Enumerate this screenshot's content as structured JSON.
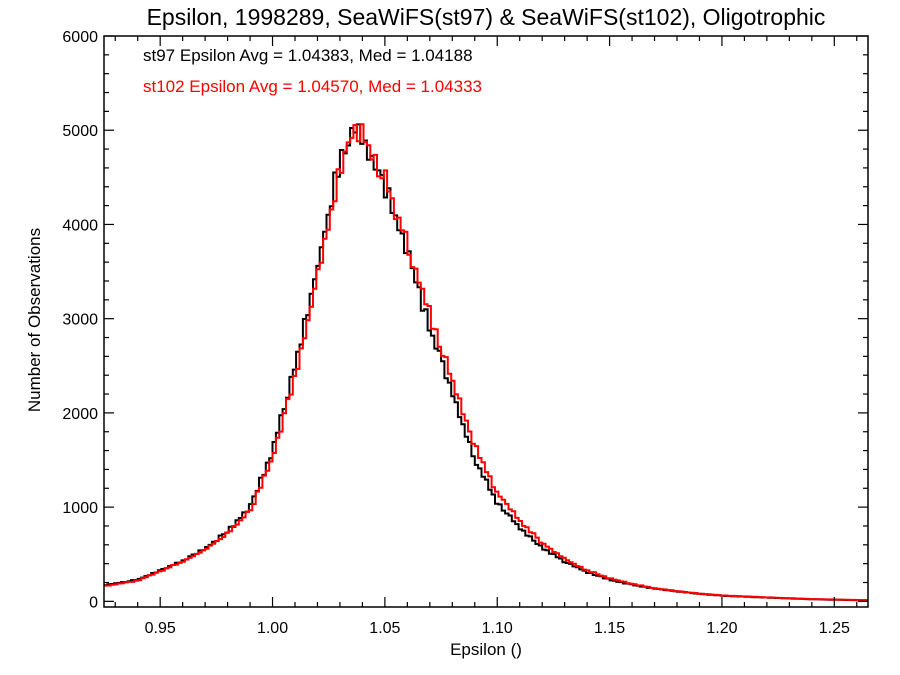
{
  "chart_data": {
    "type": "line",
    "title": "Epsilon, 1998289, SeaWiFS(st97) & SeaWiFS(st102), Oligotrophic",
    "xlabel": "Epsilon ()",
    "ylabel": "Number of Observations",
    "xlim": [
      0.925,
      1.265
    ],
    "ylim": [
      -60,
      6000
    ],
    "xticks": [
      "0.95",
      "1.00",
      "1.05",
      "1.10",
      "1.15",
      "1.20",
      "1.25"
    ],
    "yticks": [
      "0",
      "1000",
      "2000",
      "3000",
      "4000",
      "5000",
      "6000"
    ],
    "grid": false,
    "legend_position": "top-left",
    "annotations": [
      {
        "text": "st97 Epsilon Avg = 1.04383, Med = 1.04188",
        "color": "#000000"
      },
      {
        "text": "st102 Epsilon Avg = 1.04570, Med = 1.04333",
        "color": "#ff0000"
      }
    ],
    "series": [
      {
        "color": "#000000",
        "points": [
          [
            0.925,
            170
          ],
          [
            0.94,
            230
          ],
          [
            0.95,
            330
          ],
          [
            0.96,
            430
          ],
          [
            0.97,
            560
          ],
          [
            0.98,
            740
          ],
          [
            0.99,
            1000
          ],
          [
            1.0,
            1600
          ],
          [
            1.01,
            2500
          ],
          [
            1.02,
            3550
          ],
          [
            1.03,
            4700
          ],
          [
            1.035,
            5000
          ],
          [
            1.04,
            4950
          ],
          [
            1.05,
            4400
          ],
          [
            1.06,
            3700
          ],
          [
            1.07,
            2900
          ],
          [
            1.08,
            2200
          ],
          [
            1.09,
            1500
          ],
          [
            1.1,
            1050
          ],
          [
            1.11,
            780
          ],
          [
            1.12,
            570
          ],
          [
            1.13,
            420
          ],
          [
            1.14,
            310
          ],
          [
            1.15,
            230
          ],
          [
            1.16,
            175
          ],
          [
            1.17,
            135
          ],
          [
            1.18,
            105
          ],
          [
            1.19,
            80
          ],
          [
            1.2,
            60
          ],
          [
            1.22,
            40
          ],
          [
            1.24,
            22
          ],
          [
            1.265,
            10
          ]
        ]
      },
      {
        "color": "#ff0000",
        "points": [
          [
            0.925,
            160
          ],
          [
            0.94,
            220
          ],
          [
            0.95,
            320
          ],
          [
            0.96,
            420
          ],
          [
            0.97,
            550
          ],
          [
            0.98,
            720
          ],
          [
            0.99,
            960
          ],
          [
            1.0,
            1520
          ],
          [
            1.01,
            2380
          ],
          [
            1.02,
            3420
          ],
          [
            1.03,
            4600
          ],
          [
            1.035,
            4930
          ],
          [
            1.04,
            4960
          ],
          [
            1.05,
            4480
          ],
          [
            1.06,
            3800
          ],
          [
            1.07,
            3050
          ],
          [
            1.08,
            2350
          ],
          [
            1.09,
            1650
          ],
          [
            1.1,
            1150
          ],
          [
            1.11,
            850
          ],
          [
            1.12,
            620
          ],
          [
            1.13,
            450
          ],
          [
            1.14,
            330
          ],
          [
            1.15,
            245
          ],
          [
            1.16,
            185
          ],
          [
            1.17,
            140
          ],
          [
            1.18,
            108
          ],
          [
            1.19,
            82
          ],
          [
            1.2,
            62
          ],
          [
            1.22,
            42
          ],
          [
            1.24,
            24
          ],
          [
            1.265,
            12
          ]
        ]
      }
    ]
  }
}
